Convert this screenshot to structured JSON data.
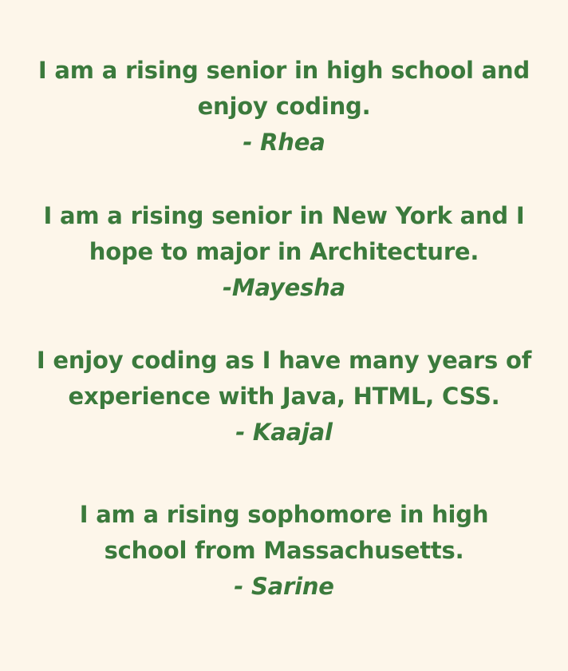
{
  "testimonials": [
    {
      "lines": [
        "I am a rising senior in high school and",
        "enjoy coding."
      ],
      "author": "- Rhea"
    },
    {
      "lines": [
        "I am a rising senior in New York and I",
        "hope to major in Architecture."
      ],
      "author": "-Mayesha"
    },
    {
      "lines": [
        "I enjoy coding as I have many years of",
        "experience with Java, HTML, CSS."
      ],
      "author": "- Kaajal"
    },
    {
      "lines": [
        "I am a rising sophomore in high",
        "school from Massachusetts."
      ],
      "author": "- Sarine"
    }
  ],
  "colors": {
    "background": "#fdf6ea",
    "text": "#3b7a3c"
  }
}
